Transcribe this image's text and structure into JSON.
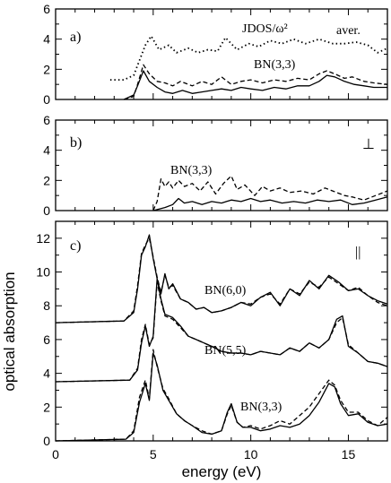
{
  "chart_data": [
    {
      "type": "line",
      "panel": "a)",
      "marker": "aver.",
      "ylim": [
        0,
        6
      ],
      "yticks": [
        "0",
        "2",
        "4",
        "6"
      ],
      "xlim": [
        0,
        17
      ],
      "annotations": {
        "jdos": "JDOS/ω²",
        "tube": "BN(3,3)"
      },
      "series": [
        {
          "style": "dotted",
          "x": [
            2.8,
            3.5,
            4.0,
            4.3,
            4.6,
            4.9,
            5.3,
            5.8,
            6.2,
            6.8,
            7.3,
            7.8,
            8.3,
            8.7,
            9.3,
            9.9,
            10.4,
            11.0,
            11.6,
            12.2,
            12.8,
            13.5,
            14.2,
            14.8,
            15.4,
            16.0,
            16.5,
            17.0
          ],
          "y": [
            1.3,
            1.3,
            1.6,
            2.6,
            3.6,
            4.2,
            3.3,
            3.6,
            3.1,
            3.4,
            3.1,
            3.3,
            3.2,
            4.1,
            3.3,
            3.7,
            3.5,
            3.9,
            3.7,
            4.0,
            3.7,
            4.0,
            3.7,
            3.7,
            3.8,
            3.6,
            3.1,
            3.4
          ]
        },
        {
          "style": "dashed",
          "x": [
            3.5,
            4.0,
            4.2,
            4.5,
            4.8,
            5.2,
            5.6,
            6.0,
            6.4,
            7.0,
            7.5,
            8.0,
            8.5,
            9.0,
            9.5,
            10.0,
            10.6,
            11.2,
            11.8,
            12.4,
            13.0,
            13.5,
            13.9,
            14.3,
            14.8,
            15.2,
            15.8,
            16.3,
            17.0
          ],
          "y": [
            0.0,
            0.2,
            1.0,
            2.3,
            1.7,
            1.2,
            1.1,
            0.9,
            1.2,
            0.9,
            1.2,
            1.0,
            1.5,
            1.0,
            1.2,
            1.3,
            1.1,
            1.3,
            1.2,
            1.4,
            1.3,
            1.7,
            1.9,
            1.7,
            1.4,
            1.5,
            1.2,
            1.1,
            1.0
          ]
        },
        {
          "style": "solid",
          "x": [
            3.5,
            4.0,
            4.2,
            4.5,
            4.8,
            5.2,
            5.6,
            6.0,
            6.5,
            7.0,
            7.5,
            8.0,
            8.5,
            9.0,
            9.5,
            10.0,
            10.6,
            11.2,
            11.8,
            12.4,
            13.0,
            13.5,
            13.9,
            14.3,
            14.8,
            15.3,
            15.8,
            16.3,
            17.0
          ],
          "y": [
            0.0,
            0.3,
            0.9,
            1.9,
            1.2,
            0.8,
            0.5,
            0.4,
            0.6,
            0.4,
            0.5,
            0.6,
            0.7,
            0.6,
            0.8,
            0.7,
            0.6,
            0.8,
            0.7,
            0.9,
            0.9,
            1.2,
            1.6,
            1.5,
            1.2,
            1.0,
            0.9,
            0.8,
            0.8
          ]
        }
      ]
    },
    {
      "type": "line",
      "panel": "b)",
      "marker": "⊥",
      "ylim": [
        0,
        6
      ],
      "yticks": [
        "0",
        "2",
        "4",
        "6"
      ],
      "xlim": [
        0,
        17
      ],
      "annotations": {
        "tube": "BN(3,3)"
      },
      "series": [
        {
          "style": "dashed",
          "x": [
            5.0,
            5.2,
            5.4,
            5.6,
            5.8,
            6.0,
            6.3,
            6.6,
            7.0,
            7.4,
            7.8,
            8.2,
            8.6,
            9.0,
            9.3,
            9.7,
            10.2,
            10.6,
            11.0,
            11.5,
            12.0,
            12.6,
            13.2,
            13.8,
            14.4,
            14.8,
            15.2,
            15.8,
            16.4,
            17.0
          ],
          "y": [
            0.0,
            0.6,
            2.1,
            1.6,
            1.9,
            1.5,
            2.0,
            1.6,
            1.8,
            1.3,
            1.9,
            1.1,
            1.8,
            2.3,
            1.4,
            1.7,
            1.0,
            1.6,
            1.3,
            1.5,
            1.2,
            1.3,
            1.1,
            1.5,
            1.2,
            1.0,
            0.9,
            0.7,
            1.0,
            1.3
          ]
        },
        {
          "style": "solid",
          "x": [
            5.0,
            5.6,
            6.0,
            6.3,
            6.6,
            7.0,
            7.5,
            8.0,
            8.5,
            9.0,
            9.5,
            10.0,
            10.5,
            11.0,
            11.6,
            12.2,
            12.8,
            13.4,
            14.0,
            14.6,
            15.2,
            15.8,
            16.4,
            17.0
          ],
          "y": [
            0.0,
            0.2,
            0.4,
            0.8,
            0.5,
            0.6,
            0.4,
            0.6,
            0.5,
            0.7,
            0.6,
            0.8,
            0.6,
            0.7,
            0.5,
            0.6,
            0.5,
            0.7,
            0.6,
            0.7,
            0.4,
            0.5,
            0.7,
            0.9
          ]
        }
      ]
    },
    {
      "type": "line",
      "panel": "c)",
      "marker": "||",
      "ylim": [
        0,
        13
      ],
      "yticks": [
        "0",
        "2",
        "4",
        "6",
        "8",
        "10",
        "12"
      ],
      "xlim": [
        0,
        17
      ],
      "xticks": [
        "0",
        "5",
        "10",
        "15"
      ],
      "xlabel": "energy (eV)",
      "ylabel": "optical absorption",
      "annotations": {
        "bn60": "BN(6,0)",
        "bn55": "BN(5,5)",
        "bn33": "BN(3,3)"
      },
      "series": [
        {
          "label": "BN(6,0)",
          "style": "solid",
          "x": [
            0.0,
            3.5,
            4.0,
            4.2,
            4.4,
            4.6,
            4.8,
            5.0,
            5.2,
            5.4,
            5.6,
            5.8,
            6.0,
            6.4,
            6.8,
            7.2,
            7.6,
            8.0,
            8.5,
            9.0,
            9.5,
            10.0,
            10.5,
            11.0,
            11.5,
            12.0,
            12.5,
            13.0,
            13.5,
            14.0,
            14.5,
            15.0,
            15.5,
            16.0,
            16.5,
            17.0
          ],
          "y": [
            7.0,
            7.1,
            7.6,
            9.0,
            11.0,
            11.5,
            12.2,
            10.8,
            9.6,
            8.7,
            9.9,
            9.0,
            9.3,
            8.4,
            8.2,
            7.8,
            7.9,
            7.6,
            7.7,
            7.9,
            8.2,
            8.0,
            8.5,
            8.8,
            8.0,
            9.0,
            8.6,
            9.5,
            9.0,
            9.8,
            9.4,
            8.9,
            9.0,
            8.6,
            8.3,
            8.1
          ]
        },
        {
          "label": "BN(6,0)",
          "style": "dashed",
          "x": [
            0.0,
            3.5,
            4.0,
            4.2,
            4.4,
            4.6,
            4.8,
            5.0,
            5.2,
            5.4,
            5.6,
            5.8,
            6.0,
            6.4,
            6.8,
            7.2,
            7.6,
            8.0,
            8.5,
            9.0,
            9.5,
            10.0,
            10.5,
            11.0,
            11.5,
            12.0,
            12.5,
            13.0,
            13.5,
            14.0,
            14.5,
            15.0,
            15.5,
            16.0,
            16.5,
            17.0
          ],
          "y": [
            7.0,
            7.1,
            7.7,
            9.2,
            11.1,
            11.6,
            12.0,
            10.9,
            9.7,
            8.8,
            9.8,
            9.1,
            9.2,
            8.4,
            8.2,
            7.8,
            7.9,
            7.6,
            7.7,
            7.9,
            8.2,
            8.1,
            8.5,
            8.7,
            8.1,
            9.0,
            8.7,
            9.4,
            9.1,
            9.7,
            9.3,
            8.9,
            9.1,
            8.6,
            8.2,
            8.0
          ]
        },
        {
          "label": "BN(5,5)",
          "style": "solid",
          "x": [
            0.0,
            3.8,
            4.2,
            4.4,
            4.6,
            4.8,
            5.0,
            5.2,
            5.4,
            5.6,
            6.0,
            6.4,
            6.8,
            7.2,
            7.6,
            8.0,
            8.5,
            9.0,
            9.5,
            10.0,
            10.5,
            11.0,
            11.5,
            12.0,
            12.5,
            13.0,
            13.5,
            14.0,
            14.4,
            14.7,
            15.0,
            15.5,
            16.0,
            16.5,
            17.0
          ],
          "y": [
            3.5,
            3.6,
            4.2,
            5.8,
            6.8,
            5.6,
            6.2,
            9.6,
            8.4,
            7.5,
            7.3,
            6.8,
            6.2,
            6.0,
            5.8,
            5.6,
            5.3,
            5.2,
            5.2,
            5.1,
            5.3,
            5.2,
            5.1,
            5.5,
            5.3,
            5.8,
            5.5,
            6.0,
            7.2,
            7.4,
            5.6,
            5.2,
            4.7,
            4.6,
            4.4
          ]
        },
        {
          "label": "BN(5,5)",
          "style": "dashed",
          "x": [
            0.0,
            3.8,
            4.2,
            4.4,
            4.6,
            4.8,
            5.0,
            5.2,
            5.4,
            5.6,
            6.0,
            6.4,
            6.8,
            7.2,
            7.6,
            8.0,
            8.5,
            9.0,
            9.5,
            10.0,
            10.5,
            11.0,
            11.5,
            12.0,
            12.5,
            13.0,
            13.5,
            14.0,
            14.4,
            14.7,
            15.0,
            15.5,
            16.0,
            16.5,
            17.0
          ],
          "y": [
            3.5,
            3.6,
            4.3,
            6.0,
            6.9,
            5.7,
            6.1,
            9.4,
            8.3,
            7.4,
            7.2,
            6.7,
            6.2,
            6.0,
            5.8,
            5.6,
            5.3,
            5.2,
            5.2,
            5.1,
            5.3,
            5.2,
            5.1,
            5.5,
            5.3,
            5.8,
            5.5,
            6.0,
            7.0,
            7.3,
            5.7,
            5.2,
            4.7,
            4.6,
            4.4
          ]
        },
        {
          "label": "BN(3,3)",
          "style": "solid",
          "x": [
            0.0,
            3.6,
            4.0,
            4.3,
            4.6,
            4.8,
            5.0,
            5.2,
            5.5,
            5.8,
            6.2,
            6.6,
            7.0,
            7.5,
            8.0,
            8.5,
            8.8,
            9.0,
            9.3,
            9.6,
            10.0,
            10.5,
            11.0,
            11.5,
            12.0,
            12.5,
            13.0,
            13.5,
            14.0,
            14.3,
            14.6,
            15.0,
            15.5,
            16.0,
            16.5,
            17.0
          ],
          "y": [
            0.0,
            0.1,
            0.5,
            2.3,
            3.4,
            2.4,
            5.2,
            4.5,
            3.0,
            2.4,
            1.6,
            1.2,
            0.9,
            0.5,
            0.4,
            0.6,
            1.7,
            2.2,
            1.1,
            0.8,
            0.8,
            0.6,
            0.7,
            0.9,
            0.8,
            1.0,
            1.5,
            2.3,
            3.4,
            3.2,
            2.2,
            1.5,
            1.6,
            1.1,
            0.9,
            1.0
          ]
        },
        {
          "label": "BN(3,3)",
          "style": "dashed",
          "x": [
            0.0,
            3.6,
            4.0,
            4.3,
            4.6,
            4.8,
            5.0,
            5.2,
            5.5,
            5.8,
            6.2,
            6.6,
            7.0,
            7.5,
            8.0,
            8.5,
            8.8,
            9.0,
            9.3,
            9.6,
            10.0,
            10.5,
            11.0,
            11.5,
            12.0,
            12.5,
            13.0,
            13.5,
            14.0,
            14.3,
            14.6,
            15.0,
            15.5,
            16.0,
            16.5,
            17.0
          ],
          "y": [
            0.0,
            0.1,
            0.6,
            2.6,
            3.6,
            2.5,
            5.4,
            4.4,
            3.1,
            2.5,
            1.6,
            1.2,
            0.9,
            0.6,
            0.4,
            0.6,
            1.6,
            2.1,
            1.1,
            0.8,
            0.9,
            0.7,
            0.9,
            1.2,
            1.0,
            1.5,
            2.0,
            2.8,
            3.6,
            3.3,
            2.4,
            1.7,
            1.7,
            1.2,
            0.9,
            1.4
          ]
        }
      ]
    }
  ]
}
